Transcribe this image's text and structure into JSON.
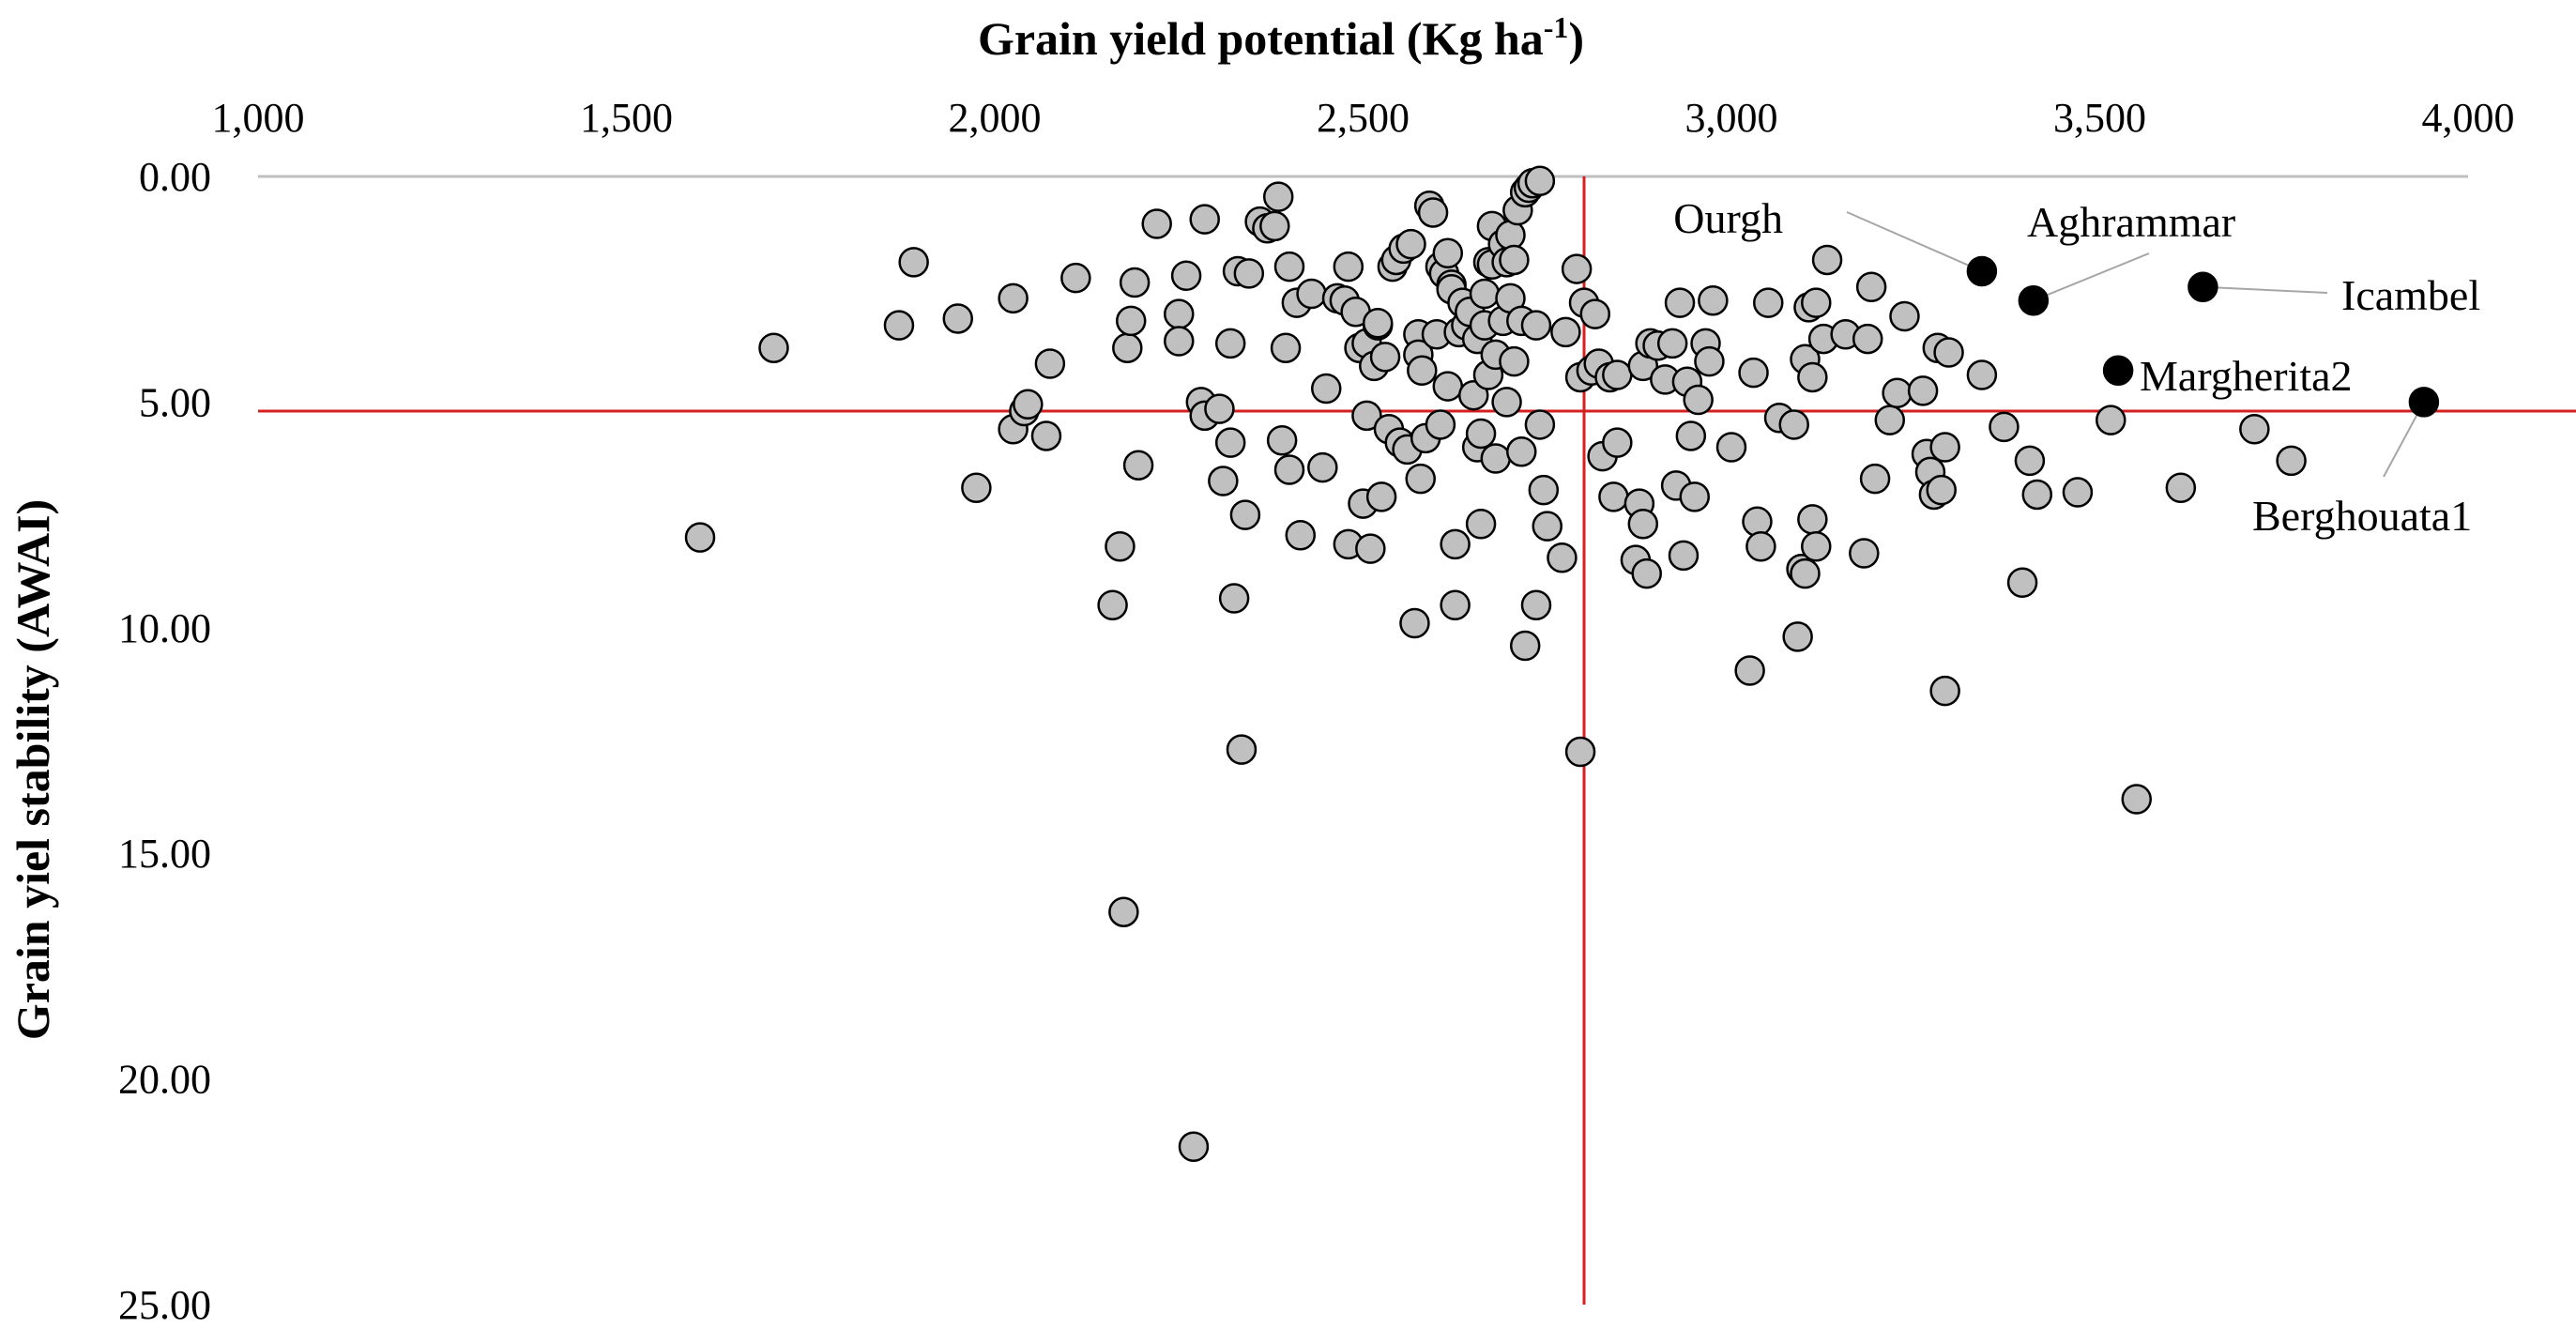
{
  "chart_data": {
    "type": "scatter",
    "title": "",
    "xlabel": "Grain yield potential (Kg ha",
    "xlabel_sup": "-1",
    "xlabel_suffix": ")",
    "ylabel": "Grain yiel stability (AWAI)",
    "x_axis_position": "top",
    "y_axis_inverted": true,
    "xlim": [
      1000,
      4000
    ],
    "ylim": [
      0,
      25
    ],
    "x_ticks": [
      "1,000",
      "1,500",
      "2,000",
      "2,500",
      "3,000",
      "3,500",
      "4,000"
    ],
    "x_tick_values": [
      1000,
      1500,
      2000,
      2500,
      3000,
      3500,
      4000
    ],
    "y_ticks": [
      "0.00",
      "5.00",
      "10.00",
      "15.00",
      "20.00",
      "25.00"
    ],
    "y_tick_values": [
      0,
      5,
      10,
      15,
      20,
      25
    ],
    "grid": false,
    "reference_lines": {
      "x_mean": 2800,
      "y_mean": 5.2,
      "color": "#d42020"
    },
    "colors": {
      "point_fill": "#c0c0c0",
      "point_edge": "#000000",
      "highlight_fill": "#000000",
      "reference_line": "#d42020",
      "axis": "#bfbfbf"
    },
    "highlighted": [
      {
        "name": "Ourgh",
        "x": 3340,
        "y": 2.1
      },
      {
        "name": "Aghrammar",
        "x": 3410,
        "y": 2.75
      },
      {
        "name": "Icambel",
        "x": 3640,
        "y": 2.45
      },
      {
        "name": "Margherita2",
        "x": 3525,
        "y": 4.3
      },
      {
        "name": "Berghouata1",
        "x": 3940,
        "y": 5.0
      }
    ],
    "points": [
      [
        1600,
        8.0
      ],
      [
        1700,
        3.8
      ],
      [
        1870,
        3.3
      ],
      [
        1890,
        1.9
      ],
      [
        1950,
        3.15
      ],
      [
        1975,
        6.9
      ],
      [
        2025,
        2.7
      ],
      [
        2025,
        5.6
      ],
      [
        2040,
        5.2
      ],
      [
        2045,
        5.05
      ],
      [
        2070,
        5.75
      ],
      [
        2075,
        4.15
      ],
      [
        2110,
        2.25
      ],
      [
        2160,
        9.5
      ],
      [
        2170,
        8.2
      ],
      [
        2175,
        16.3
      ],
      [
        2180,
        3.8
      ],
      [
        2185,
        3.2
      ],
      [
        2190,
        2.35
      ],
      [
        2195,
        6.4
      ],
      [
        2220,
        1.05
      ],
      [
        2250,
        3.05
      ],
      [
        2250,
        3.65
      ],
      [
        2260,
        2.2
      ],
      [
        2270,
        21.5
      ],
      [
        2280,
        5.0
      ],
      [
        2285,
        0.95
      ],
      [
        2285,
        5.3
      ],
      [
        2305,
        5.15
      ],
      [
        2310,
        6.75
      ],
      [
        2320,
        3.7
      ],
      [
        2320,
        5.9
      ],
      [
        2325,
        9.35
      ],
      [
        2330,
        2.1
      ],
      [
        2335,
        12.7
      ],
      [
        2340,
        7.5
      ],
      [
        2345,
        2.15
      ],
      [
        2360,
        1.0
      ],
      [
        2370,
        1.15
      ],
      [
        2380,
        1.1
      ],
      [
        2385,
        0.45
      ],
      [
        2390,
        5.85
      ],
      [
        2395,
        3.8
      ],
      [
        2400,
        6.5
      ],
      [
        2400,
        2.0
      ],
      [
        2410,
        2.8
      ],
      [
        2415,
        7.95
      ],
      [
        2430,
        2.6
      ],
      [
        2445,
        6.45
      ],
      [
        2450,
        4.7
      ],
      [
        2465,
        2.7
      ],
      [
        2475,
        2.75
      ],
      [
        2480,
        8.15
      ],
      [
        2480,
        2.0
      ],
      [
        2490,
        3.0
      ],
      [
        2495,
        3.8
      ],
      [
        2500,
        7.25
      ],
      [
        2505,
        3.7
      ],
      [
        2505,
        5.3
      ],
      [
        2510,
        8.25
      ],
      [
        2515,
        4.2
      ],
      [
        2520,
        3.3
      ],
      [
        2520,
        3.25
      ],
      [
        2525,
        7.1
      ],
      [
        2530,
        4.0
      ],
      [
        2535,
        5.6
      ],
      [
        2540,
        2.0
      ],
      [
        2545,
        1.85
      ],
      [
        2550,
        5.9
      ],
      [
        2555,
        1.6
      ],
      [
        2560,
        6.05
      ],
      [
        2565,
        1.5
      ],
      [
        2570,
        9.9
      ],
      [
        2575,
        3.5
      ],
      [
        2575,
        3.95
      ],
      [
        2578,
        6.7
      ],
      [
        2580,
        4.3
      ],
      [
        2585,
        5.8
      ],
      [
        2590,
        0.65
      ],
      [
        2595,
        0.8
      ],
      [
        2600,
        3.5
      ],
      [
        2605,
        5.5
      ],
      [
        2605,
        2.0
      ],
      [
        2610,
        2.15
      ],
      [
        2615,
        1.7
      ],
      [
        2615,
        4.65
      ],
      [
        2620,
        2.4
      ],
      [
        2620,
        2.5
      ],
      [
        2625,
        8.15
      ],
      [
        2625,
        9.5
      ],
      [
        2630,
        3.45
      ],
      [
        2635,
        2.8
      ],
      [
        2640,
        3.3
      ],
      [
        2645,
        3.0
      ],
      [
        2650,
        4.85
      ],
      [
        2655,
        3.6
      ],
      [
        2655,
        6.0
      ],
      [
        2660,
        7.7
      ],
      [
        2660,
        5.7
      ],
      [
        2665,
        3.3
      ],
      [
        2665,
        2.6
      ],
      [
        2670,
        4.4
      ],
      [
        2670,
        1.9
      ],
      [
        2675,
        1.95
      ],
      [
        2675,
        1.1
      ],
      [
        2680,
        3.95
      ],
      [
        2680,
        6.25
      ],
      [
        2690,
        1.5
      ],
      [
        2690,
        3.2
      ],
      [
        2695,
        1.9
      ],
      [
        2695,
        5.0
      ],
      [
        2700,
        1.3
      ],
      [
        2700,
        2.7
      ],
      [
        2705,
        1.85
      ],
      [
        2705,
        4.1
      ],
      [
        2710,
        0.75
      ],
      [
        2715,
        3.2
      ],
      [
        2715,
        6.1
      ],
      [
        2720,
        0.35
      ],
      [
        2720,
        10.4
      ],
      [
        2725,
        0.25
      ],
      [
        2730,
        0.15
      ],
      [
        2735,
        9.5
      ],
      [
        2735,
        3.3
      ],
      [
        2740,
        0.1
      ],
      [
        2740,
        5.5
      ],
      [
        2745,
        6.95
      ],
      [
        2750,
        7.75
      ],
      [
        2770,
        8.45
      ],
      [
        2775,
        3.45
      ],
      [
        2790,
        2.05
      ],
      [
        2795,
        12.75
      ],
      [
        2795,
        4.45
      ],
      [
        2800,
        2.8
      ],
      [
        2810,
        4.3
      ],
      [
        2815,
        3.05
      ],
      [
        2820,
        4.15
      ],
      [
        2825,
        6.2
      ],
      [
        2835,
        4.45
      ],
      [
        2840,
        7.1
      ],
      [
        2845,
        4.4
      ],
      [
        2845,
        5.9
      ],
      [
        2870,
        8.5
      ],
      [
        2875,
        7.25
      ],
      [
        2880,
        7.7
      ],
      [
        2880,
        4.2
      ],
      [
        2885,
        8.8
      ],
      [
        2890,
        3.7
      ],
      [
        2900,
        3.75
      ],
      [
        2910,
        4.5
      ],
      [
        2920,
        3.7
      ],
      [
        2925,
        6.85
      ],
      [
        2930,
        2.8
      ],
      [
        2935,
        8.4
      ],
      [
        2940,
        4.55
      ],
      [
        2945,
        5.75
      ],
      [
        2950,
        7.1
      ],
      [
        2955,
        4.95
      ],
      [
        2965,
        3.7
      ],
      [
        2970,
        4.1
      ],
      [
        2975,
        2.75
      ],
      [
        3000,
        6.0
      ],
      [
        3025,
        10.95
      ],
      [
        3030,
        4.35
      ],
      [
        3035,
        7.65
      ],
      [
        3040,
        8.2
      ],
      [
        3050,
        2.8
      ],
      [
        3065,
        5.35
      ],
      [
        3085,
        5.5
      ],
      [
        3090,
        10.2
      ],
      [
        3095,
        8.7
      ],
      [
        3100,
        8.8
      ],
      [
        3100,
        4.05
      ],
      [
        3105,
        2.9
      ],
      [
        3110,
        7.6
      ],
      [
        3110,
        4.45
      ],
      [
        3115,
        8.2
      ],
      [
        3115,
        2.8
      ],
      [
        3125,
        3.6
      ],
      [
        3130,
        1.85
      ],
      [
        3155,
        3.5
      ],
      [
        3180,
        8.35
      ],
      [
        3185,
        3.6
      ],
      [
        3190,
        2.45
      ],
      [
        3195,
        6.7
      ],
      [
        3215,
        5.4
      ],
      [
        3225,
        4.8
      ],
      [
        3235,
        3.1
      ],
      [
        3260,
        4.75
      ],
      [
        3265,
        6.15
      ],
      [
        3270,
        6.55
      ],
      [
        3275,
        7.05
      ],
      [
        3280,
        3.8
      ],
      [
        3285,
        6.95
      ],
      [
        3290,
        11.4
      ],
      [
        3290,
        6.0
      ],
      [
        3295,
        3.9
      ],
      [
        3340,
        4.4
      ],
      [
        3370,
        5.55
      ],
      [
        3395,
        9.0
      ],
      [
        3405,
        6.3
      ],
      [
        3415,
        7.05
      ],
      [
        3470,
        7.0
      ],
      [
        3515,
        5.4
      ],
      [
        3550,
        13.8
      ],
      [
        3610,
        6.9
      ],
      [
        3710,
        5.6
      ],
      [
        3760,
        6.3
      ]
    ]
  }
}
